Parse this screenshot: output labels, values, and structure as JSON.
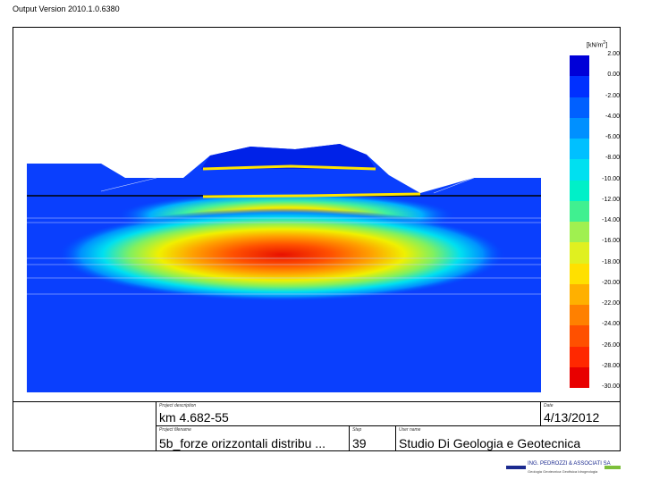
{
  "header": {
    "version": "Output Version 2010.1.0.6380"
  },
  "legend": {
    "unit_base": "[kN/m",
    "unit_sup": "2",
    "unit_close": "]",
    "values": [
      "2.00",
      "0.00",
      "-2.00",
      "-4.00",
      "-6.00",
      "-8.00",
      "-10.00",
      "-12.00",
      "-14.00",
      "-16.00",
      "-18.00",
      "-20.00",
      "-22.00",
      "-24.00",
      "-26.00",
      "-28.00",
      "-30.00"
    ],
    "colors": [
      "#0000d8",
      "#0030ff",
      "#0060ff",
      "#0090ff",
      "#00c0ff",
      "#00e0f0",
      "#00f0c8",
      "#40f090",
      "#a0f050",
      "#e0f020",
      "#ffe000",
      "#ffb000",
      "#ff8000",
      "#ff5000",
      "#ff2800",
      "#e80000"
    ]
  },
  "title_block": {
    "project_description_caption": "Project description",
    "project_description": "km 4.682-55",
    "date_caption": "Date",
    "date": "4/13/2012",
    "project_filename_caption": "Project filename",
    "project_filename": "5b_forze orizzontali distribu ...",
    "step_caption": "Step",
    "step": "39",
    "user_name_caption": "User name",
    "user_name": "Studio Di Geologia e Geotecnica"
  },
  "logo": {
    "name": "ING. PEDROZZI & ASSOCIATI SA",
    "subtitle": "Geologia Geotecnica Geofisica Idrogeologia"
  }
}
